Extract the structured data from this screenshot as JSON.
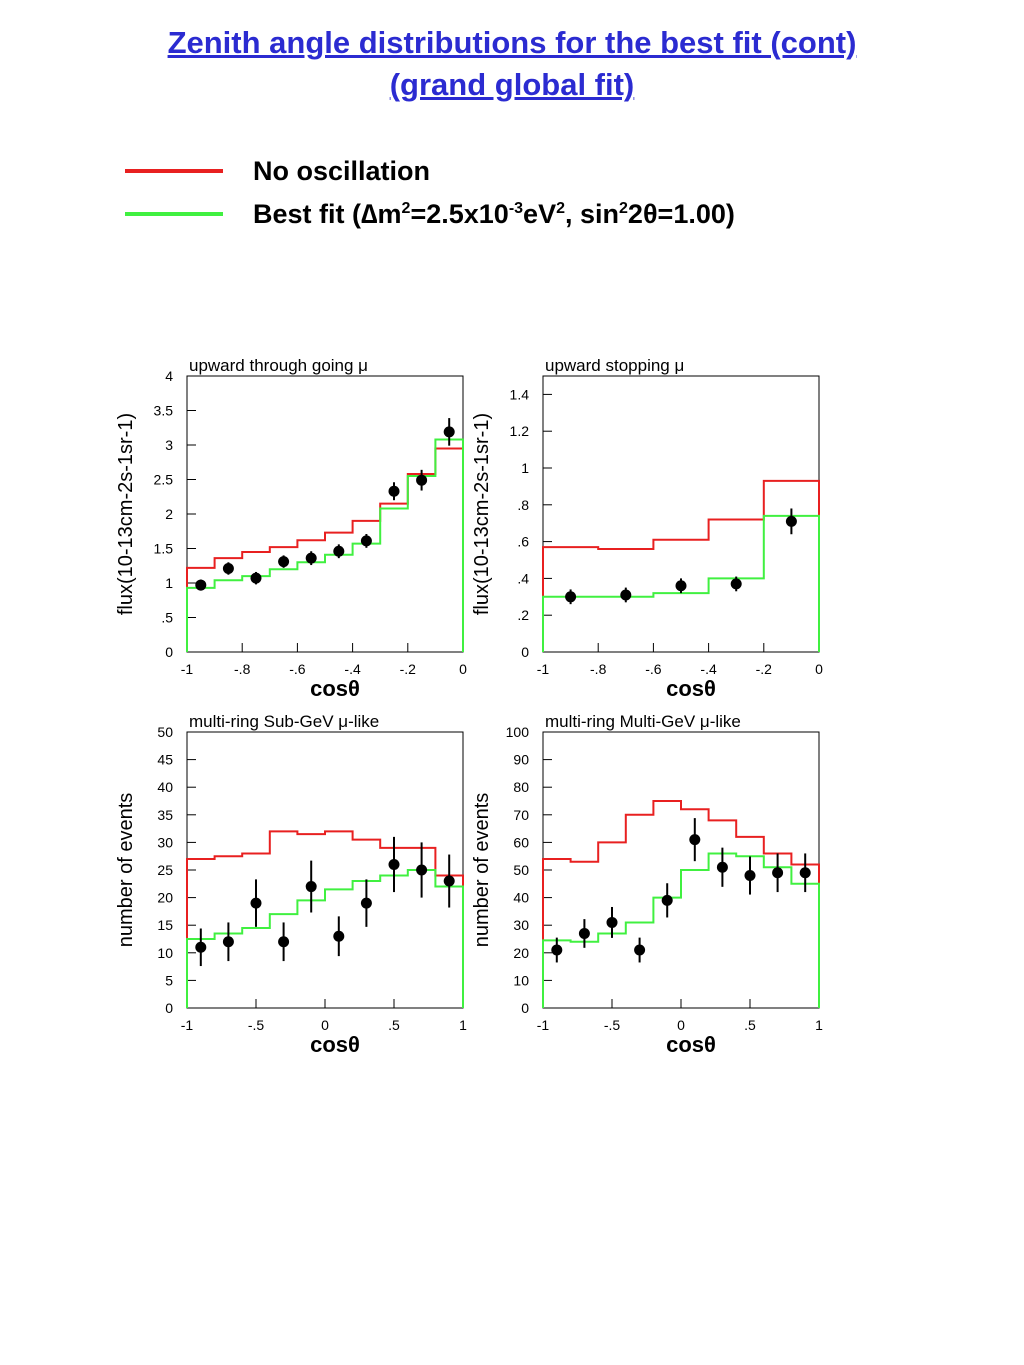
{
  "page": {
    "title_line1": "Zenith angle distributions for the best fit (cont)",
    "title_line2": "(grand global fit)"
  },
  "legend": {
    "no_osc": {
      "label": "No oscillation",
      "color": "#e82020"
    },
    "best_fit": {
      "label_prefix": "Best fit (",
      "delta": "∆",
      "m": "m",
      "sup1": "2",
      "eq": "=2.5x10",
      "sup2": "-3",
      "ev": "eV",
      "sup3": "2",
      "mid": ", sin",
      "sup4": "2",
      "two": "2",
      "theta": "θ",
      "tail": "=1.00)",
      "color": "#40f040"
    }
  },
  "chart_data": [
    {
      "type": "histogram",
      "title": "upward through going μ",
      "xlabel": "cosθ",
      "ylabel": "flux(10-13cm-2s-1sr-1)",
      "xlim": [
        -1,
        0
      ],
      "ylim": [
        0,
        4
      ],
      "xticks": [
        -1,
        -0.8,
        -0.6,
        -0.4,
        -0.2,
        0
      ],
      "yticks": [
        0,
        0.5,
        1,
        1.5,
        2,
        2.5,
        3,
        3.5,
        4
      ],
      "bin_edges": [
        -1,
        -0.9,
        -0.8,
        -0.7,
        -0.6,
        -0.5,
        -0.4,
        -0.3,
        -0.2,
        -0.1,
        0
      ],
      "series": [
        {
          "name": "No oscillation",
          "color": "#e82020",
          "values": [
            1.22,
            1.36,
            1.45,
            1.52,
            1.62,
            1.73,
            1.9,
            2.15,
            2.58,
            2.95
          ]
        },
        {
          "name": "Best fit",
          "color": "#40f040",
          "values": [
            0.93,
            1.04,
            1.1,
            1.2,
            1.3,
            1.41,
            1.57,
            2.08,
            2.55,
            3.08
          ]
        }
      ],
      "points": {
        "x": [
          -0.95,
          -0.85,
          -0.75,
          -0.65,
          -0.55,
          -0.45,
          -0.35,
          -0.25,
          -0.15,
          -0.05
        ],
        "y": [
          0.97,
          1.21,
          1.07,
          1.31,
          1.36,
          1.46,
          1.61,
          2.33,
          2.49,
          3.19
        ],
        "err": [
          0.08,
          0.09,
          0.09,
          0.09,
          0.1,
          0.1,
          0.1,
          0.13,
          0.15,
          0.2
        ]
      }
    },
    {
      "type": "histogram",
      "title": "upward stopping μ",
      "xlabel": "cosθ",
      "ylabel": "flux(10-13cm-2s-1sr-1)",
      "xlim": [
        -1,
        0
      ],
      "ylim": [
        0,
        1.5
      ],
      "xticks": [
        -1,
        -0.8,
        -0.6,
        -0.4,
        -0.2,
        0
      ],
      "yticks": [
        0,
        0.2,
        0.4,
        0.6,
        0.8,
        1,
        1.2,
        1.4
      ],
      "bin_edges": [
        -1,
        -0.8,
        -0.6,
        -0.4,
        -0.2,
        0
      ],
      "series": [
        {
          "name": "No oscillation",
          "color": "#e82020",
          "values": [
            0.57,
            0.56,
            0.61,
            0.72,
            0.93
          ]
        },
        {
          "name": "Best fit",
          "color": "#40f040",
          "values": [
            0.3,
            0.3,
            0.32,
            0.4,
            0.74
          ]
        }
      ],
      "points": {
        "x": [
          -0.9,
          -0.7,
          -0.5,
          -0.3,
          -0.1
        ],
        "y": [
          0.3,
          0.31,
          0.36,
          0.37,
          0.71
        ],
        "err": [
          0.04,
          0.04,
          0.04,
          0.04,
          0.07
        ]
      }
    },
    {
      "type": "histogram",
      "title": "multi-ring Sub-GeV μ-like",
      "xlabel": "cosθ",
      "ylabel": "number of events",
      "xlim": [
        -1,
        1
      ],
      "ylim": [
        0,
        50
      ],
      "xticks": [
        -1,
        -0.5,
        0,
        0.5,
        1
      ],
      "yticks": [
        0,
        5,
        10,
        15,
        20,
        25,
        30,
        35,
        40,
        45,
        50
      ],
      "bin_edges": [
        -1,
        -0.8,
        -0.6,
        -0.4,
        -0.2,
        0,
        0.2,
        0.4,
        0.6,
        0.8,
        1
      ],
      "series": [
        {
          "name": "No oscillation",
          "color": "#e82020",
          "values": [
            27,
            27.5,
            28,
            32,
            31.5,
            32,
            30.5,
            29,
            29,
            24
          ]
        },
        {
          "name": "Best fit",
          "color": "#40f040",
          "values": [
            12.5,
            13.5,
            14.5,
            17,
            19.5,
            21.5,
            23,
            24,
            25,
            22
          ]
        }
      ],
      "points": {
        "x": [
          -0.9,
          -0.7,
          -0.5,
          -0.3,
          -0.1,
          0.1,
          0.3,
          0.5,
          0.7,
          0.9
        ],
        "y": [
          11,
          12,
          19,
          12,
          22,
          13,
          19,
          26,
          25,
          23
        ],
        "err": [
          3.4,
          3.5,
          4.3,
          3.5,
          4.7,
          3.6,
          4.3,
          5,
          5,
          4.8
        ]
      }
    },
    {
      "type": "histogram",
      "title": "multi-ring Multi-GeV μ-like",
      "xlabel": "cosθ",
      "ylabel": "number of events",
      "xlim": [
        -1,
        1
      ],
      "ylim": [
        0,
        100
      ],
      "xticks": [
        -1,
        -0.5,
        0,
        0.5,
        1
      ],
      "yticks": [
        0,
        10,
        20,
        30,
        40,
        50,
        60,
        70,
        80,
        90,
        100
      ],
      "bin_edges": [
        -1,
        -0.8,
        -0.6,
        -0.4,
        -0.2,
        0,
        0.2,
        0.4,
        0.6,
        0.8,
        1
      ],
      "series": [
        {
          "name": "No oscillation",
          "color": "#e82020",
          "values": [
            54,
            53,
            60,
            70,
            75,
            72,
            68,
            62,
            56,
            52
          ]
        },
        {
          "name": "Best fit",
          "color": "#40f040",
          "values": [
            24.5,
            24,
            27,
            31,
            40,
            50,
            56,
            55,
            51,
            45
          ]
        }
      ],
      "points": {
        "x": [
          -0.9,
          -0.7,
          -0.5,
          -0.3,
          -0.1,
          0.1,
          0.3,
          0.5,
          0.7,
          0.9
        ],
        "y": [
          21,
          27,
          31,
          21,
          39,
          61,
          51,
          48,
          49,
          49
        ],
        "err": [
          4.5,
          5.2,
          5.6,
          4.5,
          6.2,
          7.8,
          7.1,
          6.9,
          7,
          7
        ]
      }
    }
  ]
}
